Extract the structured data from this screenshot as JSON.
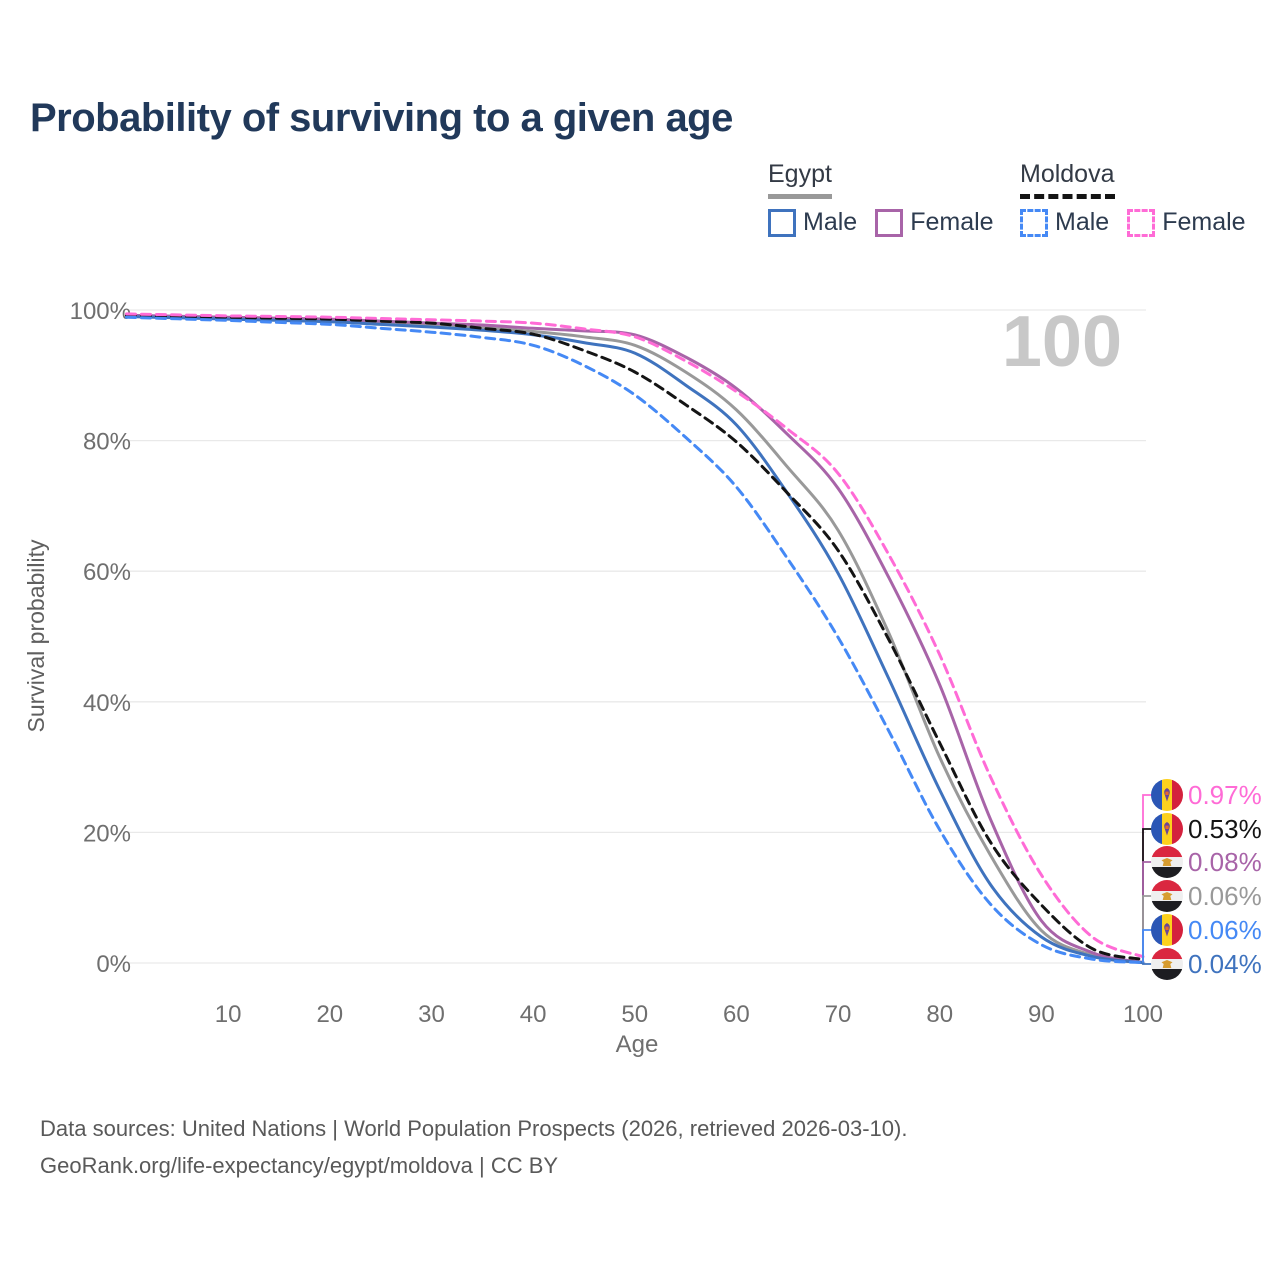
{
  "title": "Probability of surviving to a given age",
  "watermark": "100",
  "legend": {
    "groups": [
      {
        "name": "Egypt",
        "line": {
          "color": "#999999",
          "dashed": false
        },
        "items": [
          {
            "label": "Male",
            "color": "#3f73be",
            "dashed": false
          },
          {
            "label": "Female",
            "color": "#a864a8",
            "dashed": false
          }
        ]
      },
      {
        "name": "Moldova",
        "line": {
          "color": "#141414",
          "dashed": true
        },
        "items": [
          {
            "label": "Male",
            "color": "#4589f5",
            "dashed": true
          },
          {
            "label": "Female",
            "color": "#ff6bd6",
            "dashed": true
          }
        ]
      }
    ]
  },
  "chart_data": {
    "type": "line",
    "title": "Probability of surviving to a given age",
    "xlabel": "Age",
    "ylabel": "Survival probability",
    "xlim": [
      0,
      100
    ],
    "ylim": [
      0,
      100
    ],
    "grid": "horizontal",
    "legend_position": "top-right",
    "x_ticks": [
      10,
      20,
      30,
      40,
      50,
      60,
      70,
      80,
      90,
      100
    ],
    "y_ticks": [
      {
        "value": 0,
        "label": "0%"
      },
      {
        "value": 20,
        "label": "20%"
      },
      {
        "value": 40,
        "label": "40%"
      },
      {
        "value": 60,
        "label": "60%"
      },
      {
        "value": 80,
        "label": "80%"
      },
      {
        "value": 100,
        "label": "100%"
      }
    ],
    "x": [
      0,
      5,
      10,
      15,
      20,
      25,
      30,
      35,
      40,
      45,
      50,
      55,
      60,
      65,
      70,
      75,
      80,
      85,
      90,
      95,
      100
    ],
    "series": [
      {
        "id": "egypt_both",
        "name": "Egypt (both sexes)",
        "country": "egypt",
        "color": "#999999",
        "dashed": false,
        "values": [
          99.1,
          98.93,
          98.75,
          98.58,
          98.4,
          98.05,
          97.7,
          97.3,
          96.7,
          95.9,
          94.6,
          90.5,
          84.7,
          76.0,
          66.3,
          50.5,
          31.5,
          16.5,
          5.0,
          1.2,
          0.06
        ]
      },
      {
        "id": "egypt_female",
        "name": "Egypt Female",
        "country": "egypt",
        "color": "#a864a8",
        "dashed": false,
        "values": [
          99.2,
          99.05,
          98.9,
          98.75,
          98.6,
          98.3,
          98.0,
          97.7,
          97.2,
          96.8,
          96.2,
          92.8,
          88.0,
          81.0,
          72.7,
          59.0,
          42.6,
          22.0,
          6.5,
          1.6,
          0.08
        ]
      },
      {
        "id": "egypt_male",
        "name": "Egypt Male",
        "country": "egypt",
        "color": "#3f73be",
        "dashed": false,
        "values": [
          99.0,
          98.8,
          98.6,
          98.4,
          98.2,
          97.8,
          97.4,
          96.9,
          96.2,
          95.0,
          93.4,
          88.5,
          82.4,
          72.0,
          59.7,
          43.5,
          26.5,
          12.0,
          4.0,
          1.0,
          0.04
        ]
      },
      {
        "id": "moldova_both",
        "name": "Moldova (both sexes)",
        "country": "moldova",
        "color": "#141414",
        "dashed": true,
        "values": [
          99.2,
          99.05,
          98.9,
          98.75,
          98.6,
          98.3,
          98.0,
          97.2,
          96.3,
          93.8,
          90.5,
          85.5,
          79.8,
          72.0,
          63.2,
          49.5,
          33.7,
          18.5,
          8.9,
          2.2,
          0.53
        ]
      },
      {
        "id": "moldova_male",
        "name": "Moldova Male",
        "country": "moldova",
        "color": "#4589f5",
        "dashed": true,
        "values": [
          98.9,
          98.65,
          98.4,
          98.1,
          97.8,
          97.2,
          96.6,
          95.8,
          94.6,
          91.5,
          87.0,
          80.5,
          72.9,
          62.0,
          49.9,
          35.5,
          20.4,
          9.0,
          2.8,
          0.6,
          0.06
        ]
      },
      {
        "id": "moldova_female",
        "name": "Moldova Female",
        "country": "moldova",
        "color": "#ff6bd6",
        "dashed": true,
        "values": [
          99.4,
          99.25,
          99.1,
          99.0,
          98.9,
          98.7,
          98.5,
          98.3,
          98.0,
          97.1,
          95.9,
          92.2,
          87.5,
          81.8,
          75.0,
          62.5,
          47.2,
          28.5,
          13.5,
          4.0,
          0.97
        ]
      }
    ]
  },
  "end_labels": [
    {
      "series": "moldova_female",
      "text": "0.97%",
      "flag": "moldova"
    },
    {
      "series": "moldova_both",
      "text": "0.53%",
      "flag": "moldova"
    },
    {
      "series": "egypt_female",
      "text": "0.08%",
      "flag": "egypt"
    },
    {
      "series": "egypt_both",
      "text": "0.06%",
      "flag": "egypt"
    },
    {
      "series": "moldova_male",
      "text": "0.06%",
      "flag": "moldova"
    },
    {
      "series": "egypt_male",
      "text": "0.04%",
      "flag": "egypt"
    }
  ],
  "footer": {
    "line1": "Data sources: United Nations | World Population Prospects (2026, retrieved 2026-03-10).",
    "line2": "GeoRank.org/life-expectancy/egypt/moldova | CC BY"
  }
}
